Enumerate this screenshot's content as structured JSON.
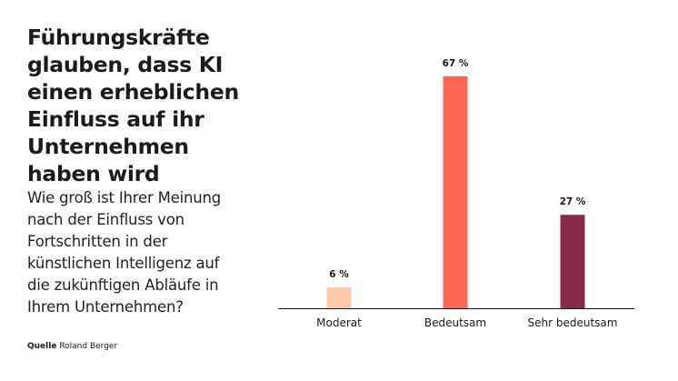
{
  "title": "Führungskräfte glauben, dass KI einen erheblichen Einfluss auf ihr Unternehmen haben wird",
  "title_lines": [
    "Führungskräfte",
    "glauben, dass KI",
    "einen erheblichen",
    "Einfluss auf ihr",
    "Unternehmen",
    "haben wird"
  ],
  "subtitle_lines": [
    "Wie groß ist Ihrer Meinung",
    "nach der Einfluss von",
    "Fortschritten in der",
    "künstlichen Intelligenz auf",
    "die zukünftigen Abläufe in",
    "Ihrem Unternehmen?"
  ],
  "source": {
    "label": "Quelle",
    "value": "Roland Berger"
  },
  "chart_data": {
    "type": "bar",
    "categories": [
      "Moderat",
      "Bedeutsam",
      "Sehr bedeutsam"
    ],
    "values": [
      6,
      67,
      27
    ],
    "value_labels": [
      "6 %",
      "67 %",
      "27 %"
    ],
    "colors": [
      "#fdc9a6",
      "#fa6654",
      "#8a2a4a"
    ],
    "ylim": [
      0,
      67
    ],
    "grid": false,
    "legend": "none"
  }
}
